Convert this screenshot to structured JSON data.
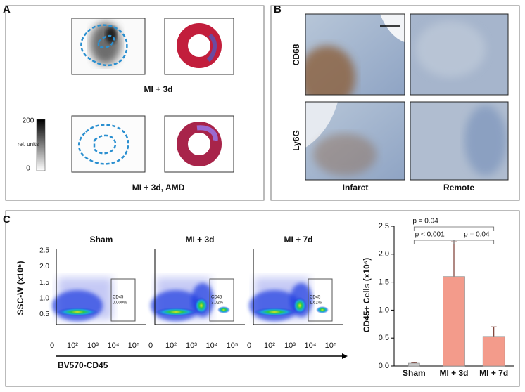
{
  "panels": {
    "a": "A",
    "b": "B",
    "c": "C"
  },
  "panel_a": {
    "row_labels": [
      "MI + 3d",
      "MI + 3d, AMD"
    ],
    "colorbar": {
      "max": "200",
      "unit": "rel. units",
      "min": "0"
    }
  },
  "panel_b": {
    "rows": [
      "CD68",
      "Ly6G"
    ],
    "columns": [
      "Infarct",
      "Remote"
    ]
  },
  "flow": {
    "titles": [
      "Sham",
      "MI + 3d",
      "MI + 7d"
    ],
    "y_label": "SSC-W (x10⁵)",
    "y_ticks": [
      "2.5",
      "2.0",
      "1.5",
      "1.0",
      "0.5"
    ],
    "x_ticks": [
      "0",
      "10²",
      "10³",
      "10⁴",
      "10⁵"
    ],
    "x_label": "BV570-CD45",
    "gates": [
      {
        "name": "CD45",
        "value": "0.000%"
      },
      {
        "name": "CD45",
        "value": "3.02%"
      },
      {
        "name": "CD45",
        "value": "1.61%"
      }
    ]
  },
  "chart_data": {
    "type": "bar",
    "ylabel": "CD45+ Cells (x10⁶)",
    "categories": [
      "Sham",
      "MI + 3d",
      "MI + 7d"
    ],
    "values": [
      0.05,
      1.6,
      0.53
    ],
    "errors": [
      0.01,
      0.62,
      0.17
    ],
    "colors": [
      "#c9c9c9",
      "#f39b8b",
      "#f39b8b"
    ],
    "ylim": [
      0,
      2.5
    ],
    "yticks": [
      {
        "value": 0,
        "label": "0.0"
      },
      {
        "value": 0.5,
        "label": "0.5"
      },
      {
        "value": 1,
        "label": "1.0"
      },
      {
        "value": 1.5,
        "label": "1.5"
      },
      {
        "value": 2,
        "label": "2.0"
      },
      {
        "value": 2.5,
        "label": "2.5"
      }
    ],
    "annotations": [
      "p = 0.04",
      "p < 0.001",
      "p = 0.04"
    ]
  }
}
